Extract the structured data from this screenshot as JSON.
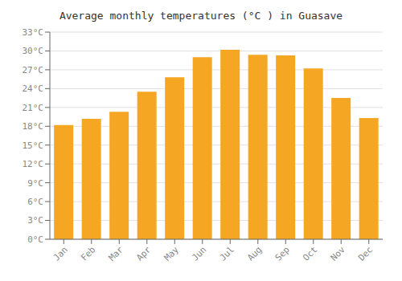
{
  "chart_data": {
    "type": "bar",
    "title": "Average monthly temperatures (°C ) in Guasave",
    "categories": [
      "Jan",
      "Feb",
      "Mar",
      "Apr",
      "May",
      "Jun",
      "Jul",
      "Aug",
      "Sep",
      "Oct",
      "Nov",
      "Dec"
    ],
    "values": [
      18.2,
      19.2,
      20.3,
      23.5,
      25.8,
      29.0,
      30.2,
      29.4,
      29.3,
      27.2,
      22.5,
      19.3
    ],
    "color": "#F5A623",
    "ylim": [
      0,
      33
    ],
    "yticks": [
      {
        "value": 0,
        "label": "0°C"
      },
      {
        "value": 3,
        "label": "3°C"
      },
      {
        "value": 6,
        "label": "6°C"
      },
      {
        "value": 9,
        "label": "9°C"
      },
      {
        "value": 12,
        "label": "12°C"
      },
      {
        "value": 15,
        "label": "15°C"
      },
      {
        "value": 18,
        "label": "18°C"
      },
      {
        "value": 21,
        "label": "21°C"
      },
      {
        "value": 24,
        "label": "24°C"
      },
      {
        "value": 27,
        "label": "27°C"
      },
      {
        "value": 30,
        "label": "30°C"
      },
      {
        "value": 33,
        "label": "33°C"
      }
    ],
    "grid": true
  }
}
